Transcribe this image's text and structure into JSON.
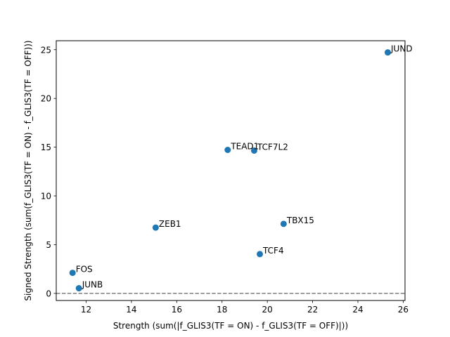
{
  "chart_data": {
    "type": "scatter",
    "title": "",
    "xlabel": "Strength (sum(|f_GLIS3(TF = ON) - f_GLIS3(TF = OFF)|))",
    "ylabel": "Signed Strength (sum(f_GLIS3(TF = ON) - f_GLIS3(TF = OFF)))",
    "xlim": [
      10.68,
      26.08
    ],
    "ylim": [
      -0.73,
      25.92
    ],
    "xticks": [
      12,
      14,
      16,
      18,
      20,
      22,
      24,
      26
    ],
    "yticks": [
      0,
      5,
      10,
      15,
      20,
      25
    ],
    "reference_line": {
      "y": 0,
      "style": "dashed",
      "color": "#808080"
    },
    "marker_color": "#1f77b4",
    "points": [
      {
        "label": "JUND",
        "x": 25.32,
        "y": 24.72
      },
      {
        "label": "TEAD1",
        "x": 18.25,
        "y": 14.72
      },
      {
        "label": "TCF7L2",
        "x": 19.42,
        "y": 14.65
      },
      {
        "label": "TBX15",
        "x": 20.72,
        "y": 7.13
      },
      {
        "label": "ZEB1",
        "x": 15.07,
        "y": 6.75
      },
      {
        "label": "TCF4",
        "x": 19.67,
        "y": 4.03
      },
      {
        "label": "FOS",
        "x": 11.4,
        "y": 2.11
      },
      {
        "label": "JUNB",
        "x": 11.68,
        "y": 0.53
      }
    ]
  }
}
